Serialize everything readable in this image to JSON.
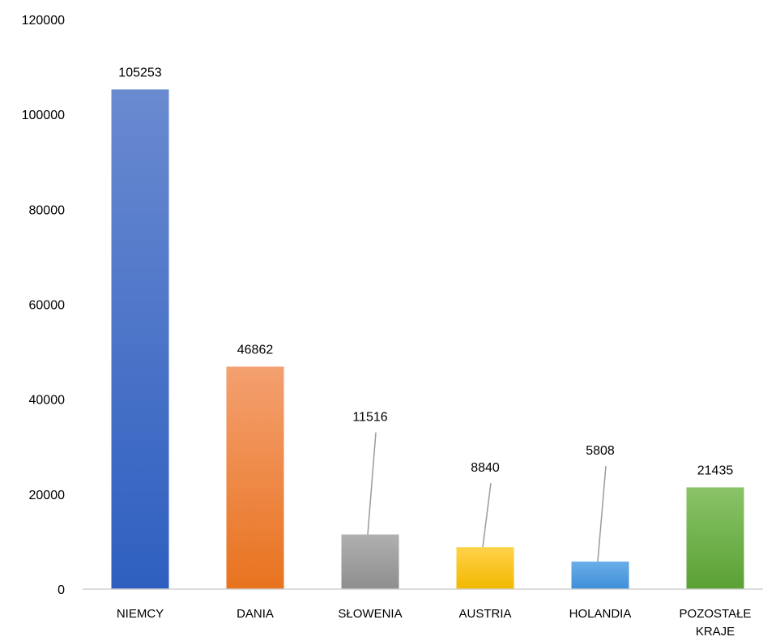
{
  "chart_data": {
    "type": "bar",
    "title": "",
    "xlabel": "",
    "ylabel": "",
    "categories": [
      "NIEMCY",
      "DANIA",
      "SŁOWENIA",
      "AUSTRIA",
      "HOLANDIA",
      "POZOSTAŁE KRAJE"
    ],
    "category_lines": [
      [
        "NIEMCY"
      ],
      [
        "DANIA"
      ],
      [
        "SŁOWENIA"
      ],
      [
        "AUSTRIA"
      ],
      [
        "HOLANDIA"
      ],
      [
        "POZOSTAŁE",
        "KRAJE"
      ]
    ],
    "values": [
      105253,
      46862,
      11516,
      8840,
      5808,
      21435
    ],
    "data_labels": [
      "105253",
      "46862",
      "11516",
      "8840",
      "5808",
      "21435"
    ],
    "ylim": [
      0,
      120000
    ],
    "yticks": [
      0,
      20000,
      40000,
      60000,
      80000,
      100000,
      120000
    ],
    "ytick_labels": [
      "0",
      "20000",
      "40000",
      "60000",
      "80000",
      "100000",
      "120000"
    ],
    "grid": false,
    "legend": "none",
    "bar_gradients": [
      [
        "#6a8ad0",
        "#2e5fc0"
      ],
      [
        "#f4a070",
        "#e8731f"
      ],
      [
        "#b0b0b0",
        "#8e8e8e"
      ],
      [
        "#ffd24a",
        "#f2b800"
      ],
      [
        "#6aaee8",
        "#3e8fd8"
      ],
      [
        "#8ac468",
        "#5aa034"
      ]
    ],
    "leader_line_color": "#9a9a9a",
    "axis_color": "#d0d0d0"
  }
}
